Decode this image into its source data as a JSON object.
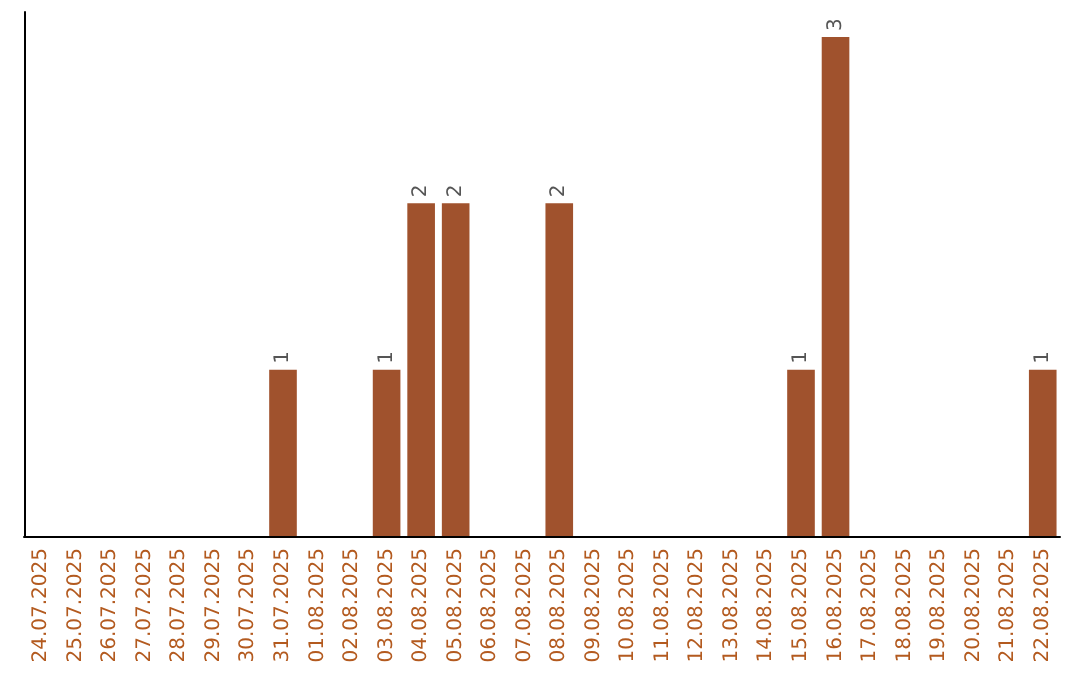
{
  "chart_data": {
    "type": "bar",
    "categories": [
      "24.07.2025",
      "25.07.2025",
      "26.07.2025",
      "27.07.2025",
      "28.07.2025",
      "29.07.2025",
      "30.07.2025",
      "31.07.2025",
      "01.08.2025",
      "02.08.2025",
      "03.08.2025",
      "04.08.2025",
      "05.08.2025",
      "06.08.2025",
      "07.08.2025",
      "08.08.2025",
      "09.08.2025",
      "10.08.2025",
      "11.08.2025",
      "12.08.2025",
      "13.08.2025",
      "14.08.2025",
      "15.08.2025",
      "16.08.2025",
      "17.08.2025",
      "18.08.2025",
      "19.08.2025",
      "20.08.2025",
      "21.08.2025",
      "22.08.2025"
    ],
    "values": [
      0,
      0,
      0,
      0,
      0,
      0,
      0,
      1,
      0,
      0,
      1,
      2,
      2,
      0,
      0,
      2,
      0,
      0,
      0,
      0,
      0,
      0,
      1,
      3,
      0,
      0,
      0,
      0,
      0,
      1
    ],
    "value_labels": [
      null,
      null,
      null,
      null,
      null,
      null,
      null,
      "1",
      null,
      null,
      "1",
      "2",
      "2",
      null,
      null,
      "2",
      null,
      null,
      null,
      null,
      null,
      null,
      "1",
      "3",
      null,
      null,
      null,
      null,
      null,
      "1"
    ],
    "color": "#a0522d",
    "tick_labels": "x"
  }
}
